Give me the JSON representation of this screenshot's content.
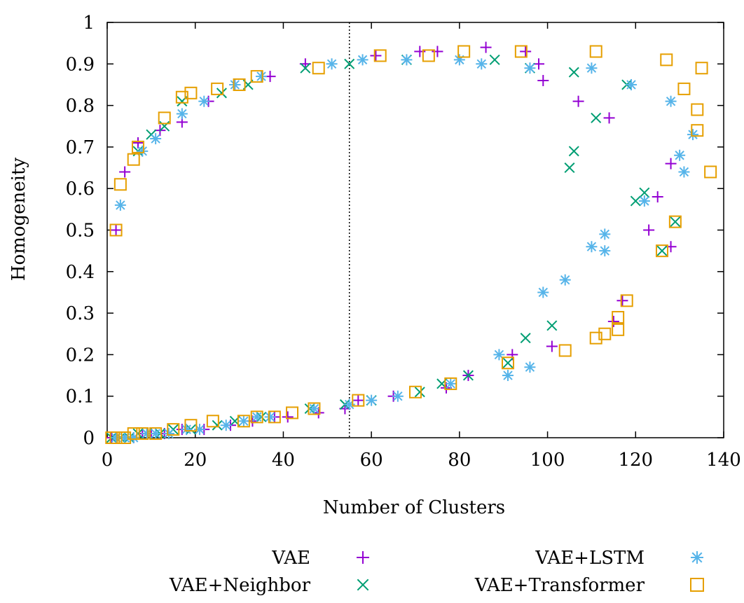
{
  "chart_data": {
    "type": "scatter",
    "title": "",
    "xlabel": "Number of Clusters",
    "ylabel": "Homogeneity",
    "xlim": [
      0,
      140
    ],
    "ylim": [
      0,
      1
    ],
    "x_ticks": [
      0,
      20,
      40,
      60,
      80,
      100,
      120,
      140
    ],
    "y_ticks": [
      0,
      0.1,
      0.2,
      0.3,
      0.4,
      0.5,
      0.6,
      0.7,
      0.8,
      0.9,
      1
    ],
    "vertical_reference_line": 55,
    "grid": false,
    "legend_position": "bottom",
    "series": [
      {
        "name": "VAE",
        "marker": "plus",
        "color": "#9400D3",
        "points": [
          [
            2,
            0.5
          ],
          [
            4,
            0.64
          ],
          [
            7,
            0.71
          ],
          [
            12,
            0.74
          ],
          [
            17,
            0.76
          ],
          [
            23,
            0.81
          ],
          [
            29,
            0.85
          ],
          [
            37,
            0.87
          ],
          [
            45,
            0.9
          ],
          [
            61,
            0.92
          ],
          [
            71,
            0.93
          ],
          [
            75,
            0.93
          ],
          [
            86,
            0.94
          ],
          [
            95,
            0.93
          ],
          [
            98,
            0.9
          ],
          [
            99,
            0.86
          ],
          [
            107,
            0.81
          ],
          [
            114,
            0.77
          ],
          [
            125,
            0.58
          ],
          [
            123,
            0.5
          ],
          [
            128,
            0.66
          ],
          [
            128,
            0.46
          ],
          [
            117,
            0.33
          ],
          [
            115,
            0.28
          ],
          [
            101,
            0.22
          ],
          [
            92,
            0.2
          ],
          [
            82,
            0.15
          ],
          [
            77,
            0.12
          ],
          [
            65,
            0.1
          ],
          [
            57,
            0.09
          ],
          [
            54,
            0.07
          ],
          [
            48,
            0.06
          ],
          [
            41,
            0.05
          ],
          [
            38,
            0.05
          ],
          [
            33,
            0.04
          ],
          [
            28,
            0.03
          ],
          [
            22,
            0.02
          ],
          [
            17,
            0.02
          ],
          [
            13,
            0.01
          ],
          [
            10,
            0.01
          ],
          [
            8,
            0.01
          ],
          [
            6,
            0.0
          ],
          [
            4,
            0.0
          ],
          [
            2,
            0.0
          ],
          [
            1,
            0.0
          ]
        ]
      },
      {
        "name": "VAE+Neighbor",
        "marker": "cross",
        "color": "#009E73",
        "points": [
          [
            7,
            0.69
          ],
          [
            10,
            0.73
          ],
          [
            13,
            0.75
          ],
          [
            17,
            0.81
          ],
          [
            26,
            0.83
          ],
          [
            32,
            0.85
          ],
          [
            45,
            0.89
          ],
          [
            55,
            0.9
          ],
          [
            68,
            0.91
          ],
          [
            88,
            0.91
          ],
          [
            96,
            0.89
          ],
          [
            105,
            0.65
          ],
          [
            106,
            0.69
          ],
          [
            106,
            0.88
          ],
          [
            111,
            0.77
          ],
          [
            118,
            0.85
          ],
          [
            120,
            0.57
          ],
          [
            122,
            0.59
          ],
          [
            129,
            0.52
          ],
          [
            126,
            0.45
          ],
          [
            101,
            0.27
          ],
          [
            95,
            0.24
          ],
          [
            91,
            0.18
          ],
          [
            82,
            0.15
          ],
          [
            76,
            0.13
          ],
          [
            71,
            0.11
          ],
          [
            60,
            0.09
          ],
          [
            54,
            0.08
          ],
          [
            46,
            0.07
          ],
          [
            35,
            0.05
          ],
          [
            29,
            0.04
          ],
          [
            25,
            0.03
          ],
          [
            19,
            0.02
          ],
          [
            15,
            0.02
          ],
          [
            12,
            0.01
          ],
          [
            9,
            0.01
          ],
          [
            7,
            0.01
          ],
          [
            5,
            0.0
          ],
          [
            3,
            0.0
          ],
          [
            1,
            0.0
          ]
        ]
      },
      {
        "name": "VAE+LSTM",
        "marker": "star",
        "color": "#56B4E9",
        "points": [
          [
            3,
            0.56
          ],
          [
            8,
            0.69
          ],
          [
            11,
            0.72
          ],
          [
            17,
            0.78
          ],
          [
            22,
            0.81
          ],
          [
            29,
            0.85
          ],
          [
            35,
            0.87
          ],
          [
            51,
            0.9
          ],
          [
            58,
            0.91
          ],
          [
            68,
            0.91
          ],
          [
            80,
            0.91
          ],
          [
            85,
            0.9
          ],
          [
            96,
            0.89
          ],
          [
            110,
            0.89
          ],
          [
            119,
            0.85
          ],
          [
            128,
            0.81
          ],
          [
            133,
            0.73
          ],
          [
            130,
            0.68
          ],
          [
            131,
            0.64
          ],
          [
            122,
            0.57
          ],
          [
            113,
            0.49
          ],
          [
            110,
            0.46
          ],
          [
            113,
            0.45
          ],
          [
            104,
            0.38
          ],
          [
            99,
            0.35
          ],
          [
            96,
            0.17
          ],
          [
            91,
            0.15
          ],
          [
            89,
            0.2
          ],
          [
            78,
            0.13
          ],
          [
            66,
            0.1
          ],
          [
            60,
            0.09
          ],
          [
            55,
            0.08
          ],
          [
            47,
            0.07
          ],
          [
            37,
            0.05
          ],
          [
            34,
            0.05
          ],
          [
            31,
            0.04
          ],
          [
            27,
            0.03
          ],
          [
            21,
            0.02
          ],
          [
            18,
            0.02
          ],
          [
            14,
            0.01
          ],
          [
            11,
            0.01
          ],
          [
            9,
            0.01
          ],
          [
            6,
            0.0
          ],
          [
            4,
            0.0
          ],
          [
            2,
            0.0
          ]
        ]
      },
      {
        "name": "VAE+Transformer",
        "marker": "square",
        "color": "#E69F00",
        "points": [
          [
            2,
            0.5
          ],
          [
            3,
            0.61
          ],
          [
            6,
            0.67
          ],
          [
            7,
            0.7
          ],
          [
            13,
            0.77
          ],
          [
            17,
            0.82
          ],
          [
            19,
            0.83
          ],
          [
            25,
            0.84
          ],
          [
            30,
            0.85
          ],
          [
            34,
            0.87
          ],
          [
            48,
            0.89
          ],
          [
            62,
            0.92
          ],
          [
            73,
            0.92
          ],
          [
            81,
            0.93
          ],
          [
            94,
            0.93
          ],
          [
            111,
            0.93
          ],
          [
            127,
            0.91
          ],
          [
            135,
            0.89
          ],
          [
            131,
            0.84
          ],
          [
            134,
            0.79
          ],
          [
            134,
            0.74
          ],
          [
            137,
            0.64
          ],
          [
            129,
            0.52
          ],
          [
            126,
            0.45
          ],
          [
            118,
            0.33
          ],
          [
            116,
            0.29
          ],
          [
            116,
            0.26
          ],
          [
            113,
            0.25
          ],
          [
            111,
            0.24
          ],
          [
            104,
            0.21
          ],
          [
            91,
            0.18
          ],
          [
            78,
            0.13
          ],
          [
            70,
            0.11
          ],
          [
            57,
            0.09
          ],
          [
            47,
            0.07
          ],
          [
            42,
            0.06
          ],
          [
            38,
            0.05
          ],
          [
            34,
            0.05
          ],
          [
            31,
            0.04
          ],
          [
            24,
            0.04
          ],
          [
            19,
            0.03
          ],
          [
            15,
            0.02
          ],
          [
            11,
            0.01
          ],
          [
            8,
            0.01
          ],
          [
            6,
            0.01
          ],
          [
            4,
            0.0
          ],
          [
            2,
            0.0
          ],
          [
            1,
            0.0
          ]
        ]
      }
    ]
  }
}
